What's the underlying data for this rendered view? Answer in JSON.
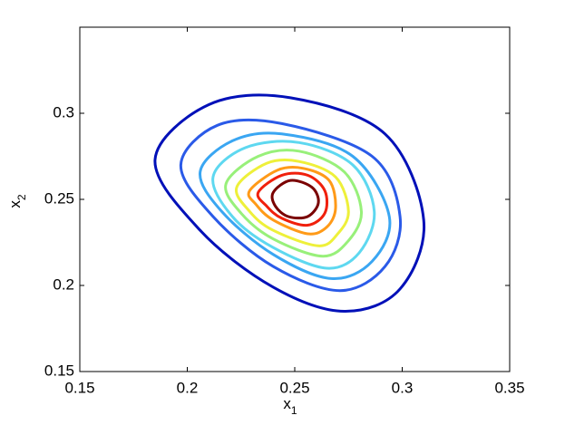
{
  "chart_data": {
    "type": "contour",
    "xlabel": {
      "text": "x",
      "subscript": "1"
    },
    "ylabel": {
      "text": "x",
      "subscript": "2"
    },
    "xlim": [
      0.15,
      0.35
    ],
    "ylim": [
      0.15,
      0.35
    ],
    "xticks": [
      0.15,
      0.2,
      0.25,
      0.3,
      0.35
    ],
    "yticks": [
      0.15,
      0.2,
      0.25,
      0.3
    ],
    "series": [
      {
        "color": "#0010b8",
        "x": [
          0.185,
          0.21,
          0.248,
          0.292,
          0.31,
          0.299,
          0.273,
          0.24,
          0.206
        ],
        "y": [
          0.273,
          0.305,
          0.309,
          0.288,
          0.238,
          0.198,
          0.185,
          0.199,
          0.232
        ]
      },
      {
        "color": "#2a5ae8",
        "x": [
          0.197,
          0.214,
          0.244,
          0.286,
          0.299,
          0.292,
          0.271,
          0.24,
          0.212
        ],
        "y": [
          0.27,
          0.293,
          0.294,
          0.275,
          0.24,
          0.211,
          0.197,
          0.211,
          0.24
        ]
      },
      {
        "color": "#3aa6f2",
        "x": [
          0.206,
          0.221,
          0.244,
          0.277,
          0.294,
          0.286,
          0.267,
          0.24,
          0.216
        ],
        "y": [
          0.266,
          0.284,
          0.288,
          0.275,
          0.24,
          0.214,
          0.204,
          0.218,
          0.243
        ]
      },
      {
        "color": "#5ed8f0",
        "x": [
          0.212,
          0.227,
          0.252,
          0.277,
          0.287,
          0.28,
          0.265,
          0.24,
          0.221
        ],
        "y": [
          0.263,
          0.28,
          0.283,
          0.27,
          0.243,
          0.219,
          0.21,
          0.222,
          0.24
        ]
      },
      {
        "color": "#98f07a",
        "x": [
          0.218,
          0.233,
          0.252,
          0.273,
          0.281,
          0.275,
          0.263,
          0.24,
          0.225
        ],
        "y": [
          0.259,
          0.275,
          0.278,
          0.266,
          0.243,
          0.226,
          0.217,
          0.227,
          0.242
        ]
      },
      {
        "color": "#eef03a",
        "x": [
          0.223,
          0.237,
          0.252,
          0.269,
          0.275,
          0.27,
          0.261,
          0.24,
          0.229
        ],
        "y": [
          0.257,
          0.271,
          0.272,
          0.263,
          0.243,
          0.23,
          0.223,
          0.232,
          0.243
        ]
      },
      {
        "color": "#ff9a18",
        "x": [
          0.229,
          0.242,
          0.254,
          0.266,
          0.269,
          0.265,
          0.256,
          0.24,
          0.232
        ],
        "y": [
          0.255,
          0.267,
          0.268,
          0.261,
          0.245,
          0.234,
          0.23,
          0.238,
          0.247
        ]
      },
      {
        "color": "#f0200c",
        "x": [
          0.233,
          0.244,
          0.256,
          0.264,
          0.264,
          0.256,
          0.244,
          0.237
        ],
        "y": [
          0.254,
          0.264,
          0.264,
          0.255,
          0.242,
          0.235,
          0.239,
          0.246
        ]
      },
      {
        "color": "#7a0000",
        "x": [
          0.24,
          0.248,
          0.258,
          0.261,
          0.256,
          0.247,
          0.241
        ],
        "y": [
          0.254,
          0.261,
          0.257,
          0.248,
          0.24,
          0.24,
          0.246
        ]
      }
    ]
  }
}
